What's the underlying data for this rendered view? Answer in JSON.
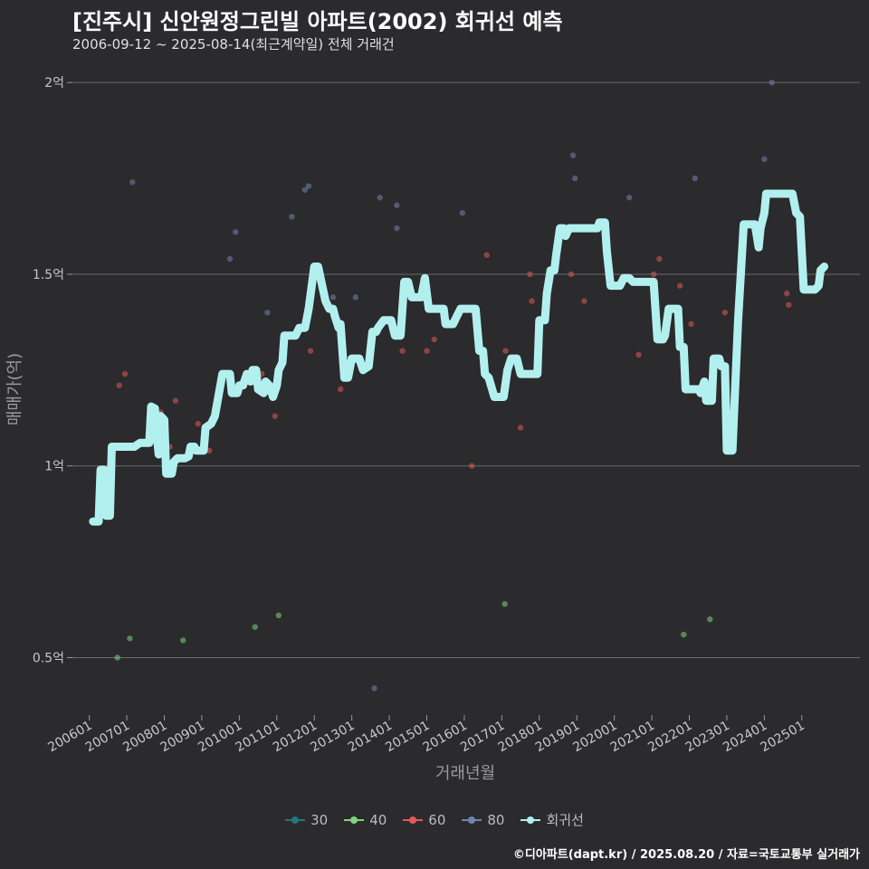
{
  "header": {
    "title": "[진주시] 신안원정그린빌 아파트(2002) 회귀선 예측",
    "subtitle": "2006-09-12 ~ 2025-08-14(최근계약일) 전체 거래건"
  },
  "footer": "©디아파트(dapt.kr) / 2025.08.20 / 자료=국토교통부 실거래가",
  "chart_data": {
    "type": "scatter",
    "title": "[진주시] 신안원정그린빌 아파트(2002) 회귀선 예측",
    "xlabel": "거래년월",
    "ylabel": "매매가(억)",
    "xlim": [
      2005.55,
      2026.55
    ],
    "ylim": [
      0.35,
      2.05
    ],
    "yticks": [
      0.5,
      1.0,
      1.5,
      2.0
    ],
    "ytick_labels": [
      "0.5억",
      "1억",
      "1.5억",
      "2억"
    ],
    "xticks": [
      2006,
      2007,
      2008,
      2009,
      2010,
      2011,
      2012,
      2013,
      2014,
      2015,
      2016,
      2017,
      2018,
      2019,
      2020,
      2021,
      2022,
      2023,
      2024,
      2025
    ],
    "xtick_labels": [
      "200601",
      "200701",
      "200801",
      "200901",
      "201001",
      "201101",
      "201201",
      "201301",
      "201401",
      "201501",
      "201601",
      "201701",
      "201801",
      "201901",
      "202001",
      "202101",
      "202201",
      "202301",
      "202401",
      "202501"
    ],
    "grid": true,
    "legend": {
      "position": "bottom",
      "items": [
        {
          "name": "30",
          "color": "#1f7b7b"
        },
        {
          "name": "40",
          "color": "#7ed47e"
        },
        {
          "name": "60",
          "color": "#e05a5a"
        },
        {
          "name": "80",
          "color": "#6f84b0"
        },
        {
          "name": "회귀선",
          "color": "#b2f0ef"
        }
      ]
    },
    "series": [
      {
        "name": "40",
        "color": "#7ed47e",
        "points": [
          [
            2006.75,
            0.5
          ],
          [
            2007.08,
            0.55
          ],
          [
            2008.5,
            0.545
          ],
          [
            2010.42,
            0.58
          ],
          [
            2011.05,
            0.61
          ],
          [
            2017.08,
            0.64
          ],
          [
            2021.85,
            0.56
          ],
          [
            2022.55,
            0.6
          ]
        ]
      },
      {
        "name": "60",
        "color": "#e05a5a",
        "points": [
          [
            2006.8,
            1.21
          ],
          [
            2006.95,
            1.24
          ],
          [
            2007.9,
            1.14
          ],
          [
            2008.15,
            1.05
          ],
          [
            2008.3,
            1.17
          ],
          [
            2008.9,
            1.11
          ],
          [
            2009.2,
            1.04
          ],
          [
            2009.35,
            1.15
          ],
          [
            2010.6,
            1.24
          ],
          [
            2010.95,
            1.13
          ],
          [
            2011.9,
            1.3
          ],
          [
            2012.7,
            1.2
          ],
          [
            2014.35,
            1.3
          ],
          [
            2015.0,
            1.3
          ],
          [
            2015.2,
            1.33
          ],
          [
            2016.2,
            1.0
          ],
          [
            2016.6,
            1.55
          ],
          [
            2017.1,
            1.3
          ],
          [
            2017.5,
            1.1
          ],
          [
            2017.75,
            1.5
          ],
          [
            2017.8,
            1.43
          ],
          [
            2018.85,
            1.5
          ],
          [
            2019.2,
            1.43
          ],
          [
            2020.65,
            1.29
          ],
          [
            2021.05,
            1.5
          ],
          [
            2021.2,
            1.54
          ],
          [
            2021.75,
            1.47
          ],
          [
            2022.05,
            1.37
          ],
          [
            2022.95,
            1.4
          ],
          [
            2024.6,
            1.45
          ],
          [
            2024.65,
            1.42
          ]
        ]
      },
      {
        "name": "80",
        "color": "#6f84b0",
        "points": [
          [
            2007.15,
            1.74
          ],
          [
            2009.75,
            1.54
          ],
          [
            2009.9,
            1.61
          ],
          [
            2010.75,
            1.4
          ],
          [
            2011.4,
            1.65
          ],
          [
            2011.75,
            1.72
          ],
          [
            2011.85,
            1.73
          ],
          [
            2012.5,
            1.44
          ],
          [
            2013.1,
            1.44
          ],
          [
            2013.6,
            0.42
          ],
          [
            2013.75,
            1.7
          ],
          [
            2014.2,
            1.62
          ],
          [
            2014.2,
            1.68
          ],
          [
            2015.95,
            1.66
          ],
          [
            2018.9,
            1.81
          ],
          [
            2018.95,
            1.75
          ],
          [
            2020.4,
            1.7
          ],
          [
            2022.15,
            1.75
          ],
          [
            2024.0,
            1.8
          ],
          [
            2024.2,
            2.0
          ]
        ]
      },
      {
        "name": "회귀선",
        "color": "#b2f0ef",
        "points": [
          [
            2006.1,
            0.855
          ],
          [
            2006.25,
            0.855
          ],
          [
            2006.3,
            0.99
          ],
          [
            2006.4,
            0.99
          ],
          [
            2006.45,
            0.87
          ],
          [
            2006.55,
            0.87
          ],
          [
            2006.6,
            1.05
          ],
          [
            2007.2,
            1.05
          ],
          [
            2007.35,
            1.06
          ],
          [
            2007.6,
            1.06
          ],
          [
            2007.65,
            1.155
          ],
          [
            2007.75,
            1.15
          ],
          [
            2007.8,
            1.08
          ],
          [
            2007.85,
            1.03
          ],
          [
            2007.9,
            1.13
          ],
          [
            2008.0,
            1.12
          ],
          [
            2008.05,
            0.98
          ],
          [
            2008.2,
            0.98
          ],
          [
            2008.25,
            1.01
          ],
          [
            2008.35,
            1.02
          ],
          [
            2008.55,
            1.02
          ],
          [
            2008.65,
            1.025
          ],
          [
            2008.7,
            1.05
          ],
          [
            2008.8,
            1.05
          ],
          [
            2008.85,
            1.04
          ],
          [
            2009.05,
            1.04
          ],
          [
            2009.1,
            1.1
          ],
          [
            2009.25,
            1.11
          ],
          [
            2009.35,
            1.13
          ],
          [
            2009.55,
            1.24
          ],
          [
            2009.75,
            1.24
          ],
          [
            2009.8,
            1.19
          ],
          [
            2009.95,
            1.19
          ],
          [
            2010.0,
            1.21
          ],
          [
            2010.1,
            1.21
          ],
          [
            2010.2,
            1.24
          ],
          [
            2010.3,
            1.22
          ],
          [
            2010.35,
            1.25
          ],
          [
            2010.45,
            1.25
          ],
          [
            2010.5,
            1.2
          ],
          [
            2010.65,
            1.19
          ],
          [
            2010.7,
            1.22
          ],
          [
            2010.8,
            1.21
          ],
          [
            2010.9,
            1.18
          ],
          [
            2011.0,
            1.21
          ],
          [
            2011.05,
            1.25
          ],
          [
            2011.15,
            1.27
          ],
          [
            2011.2,
            1.34
          ],
          [
            2011.5,
            1.34
          ],
          [
            2011.6,
            1.36
          ],
          [
            2011.75,
            1.36
          ],
          [
            2011.85,
            1.41
          ],
          [
            2012.0,
            1.52
          ],
          [
            2012.1,
            1.52
          ],
          [
            2012.3,
            1.43
          ],
          [
            2012.4,
            1.41
          ],
          [
            2012.5,
            1.41
          ],
          [
            2012.55,
            1.39
          ],
          [
            2012.65,
            1.36
          ],
          [
            2012.7,
            1.37
          ],
          [
            2012.8,
            1.23
          ],
          [
            2012.9,
            1.23
          ],
          [
            2013.0,
            1.28
          ],
          [
            2013.2,
            1.28
          ],
          [
            2013.3,
            1.25
          ],
          [
            2013.45,
            1.26
          ],
          [
            2013.55,
            1.35
          ],
          [
            2013.65,
            1.35
          ],
          [
            2013.7,
            1.36
          ],
          [
            2013.85,
            1.38
          ],
          [
            2014.05,
            1.38
          ],
          [
            2014.15,
            1.34
          ],
          [
            2014.3,
            1.34
          ],
          [
            2014.4,
            1.48
          ],
          [
            2014.5,
            1.48
          ],
          [
            2014.6,
            1.44
          ],
          [
            2014.85,
            1.44
          ],
          [
            2014.95,
            1.49
          ],
          [
            2015.05,
            1.41
          ],
          [
            2015.2,
            1.41
          ],
          [
            2015.45,
            1.41
          ],
          [
            2015.5,
            1.37
          ],
          [
            2015.7,
            1.37
          ],
          [
            2015.8,
            1.39
          ],
          [
            2015.9,
            1.41
          ],
          [
            2016.3,
            1.41
          ],
          [
            2016.4,
            1.3
          ],
          [
            2016.5,
            1.3
          ],
          [
            2016.55,
            1.24
          ],
          [
            2016.65,
            1.23
          ],
          [
            2016.8,
            1.18
          ],
          [
            2017.05,
            1.18
          ],
          [
            2017.15,
            1.25
          ],
          [
            2017.25,
            1.28
          ],
          [
            2017.4,
            1.28
          ],
          [
            2017.5,
            1.24
          ],
          [
            2017.95,
            1.24
          ],
          [
            2018.0,
            1.38
          ],
          [
            2018.15,
            1.38
          ],
          [
            2018.2,
            1.45
          ],
          [
            2018.3,
            1.51
          ],
          [
            2018.4,
            1.51
          ],
          [
            2018.45,
            1.55
          ],
          [
            2018.55,
            1.62
          ],
          [
            2018.65,
            1.62
          ],
          [
            2018.7,
            1.6
          ],
          [
            2018.8,
            1.62
          ],
          [
            2019.55,
            1.62
          ],
          [
            2019.6,
            1.635
          ],
          [
            2019.75,
            1.635
          ],
          [
            2019.8,
            1.56
          ],
          [
            2019.9,
            1.47
          ],
          [
            2020.15,
            1.47
          ],
          [
            2020.25,
            1.49
          ],
          [
            2020.4,
            1.49
          ],
          [
            2020.5,
            1.48
          ],
          [
            2021.05,
            1.48
          ],
          [
            2021.15,
            1.33
          ],
          [
            2021.3,
            1.33
          ],
          [
            2021.35,
            1.34
          ],
          [
            2021.45,
            1.41
          ],
          [
            2021.7,
            1.41
          ],
          [
            2021.75,
            1.31
          ],
          [
            2021.85,
            1.31
          ],
          [
            2021.9,
            1.2
          ],
          [
            2022.25,
            1.2
          ],
          [
            2022.3,
            1.19
          ],
          [
            2022.4,
            1.22
          ],
          [
            2022.45,
            1.17
          ],
          [
            2022.6,
            1.17
          ],
          [
            2022.65,
            1.28
          ],
          [
            2022.8,
            1.28
          ],
          [
            2022.85,
            1.26
          ],
          [
            2022.95,
            1.26
          ],
          [
            2023.0,
            1.04
          ],
          [
            2023.15,
            1.04
          ],
          [
            2023.3,
            1.38
          ],
          [
            2023.45,
            1.63
          ],
          [
            2023.75,
            1.63
          ],
          [
            2023.85,
            1.57
          ],
          [
            2023.9,
            1.62
          ],
          [
            2024.0,
            1.66
          ],
          [
            2024.05,
            1.71
          ],
          [
            2024.75,
            1.71
          ],
          [
            2024.85,
            1.66
          ],
          [
            2024.95,
            1.65
          ],
          [
            2025.05,
            1.46
          ],
          [
            2025.35,
            1.46
          ],
          [
            2025.45,
            1.47
          ],
          [
            2025.5,
            1.51
          ],
          [
            2025.6,
            1.52
          ]
        ]
      }
    ]
  }
}
